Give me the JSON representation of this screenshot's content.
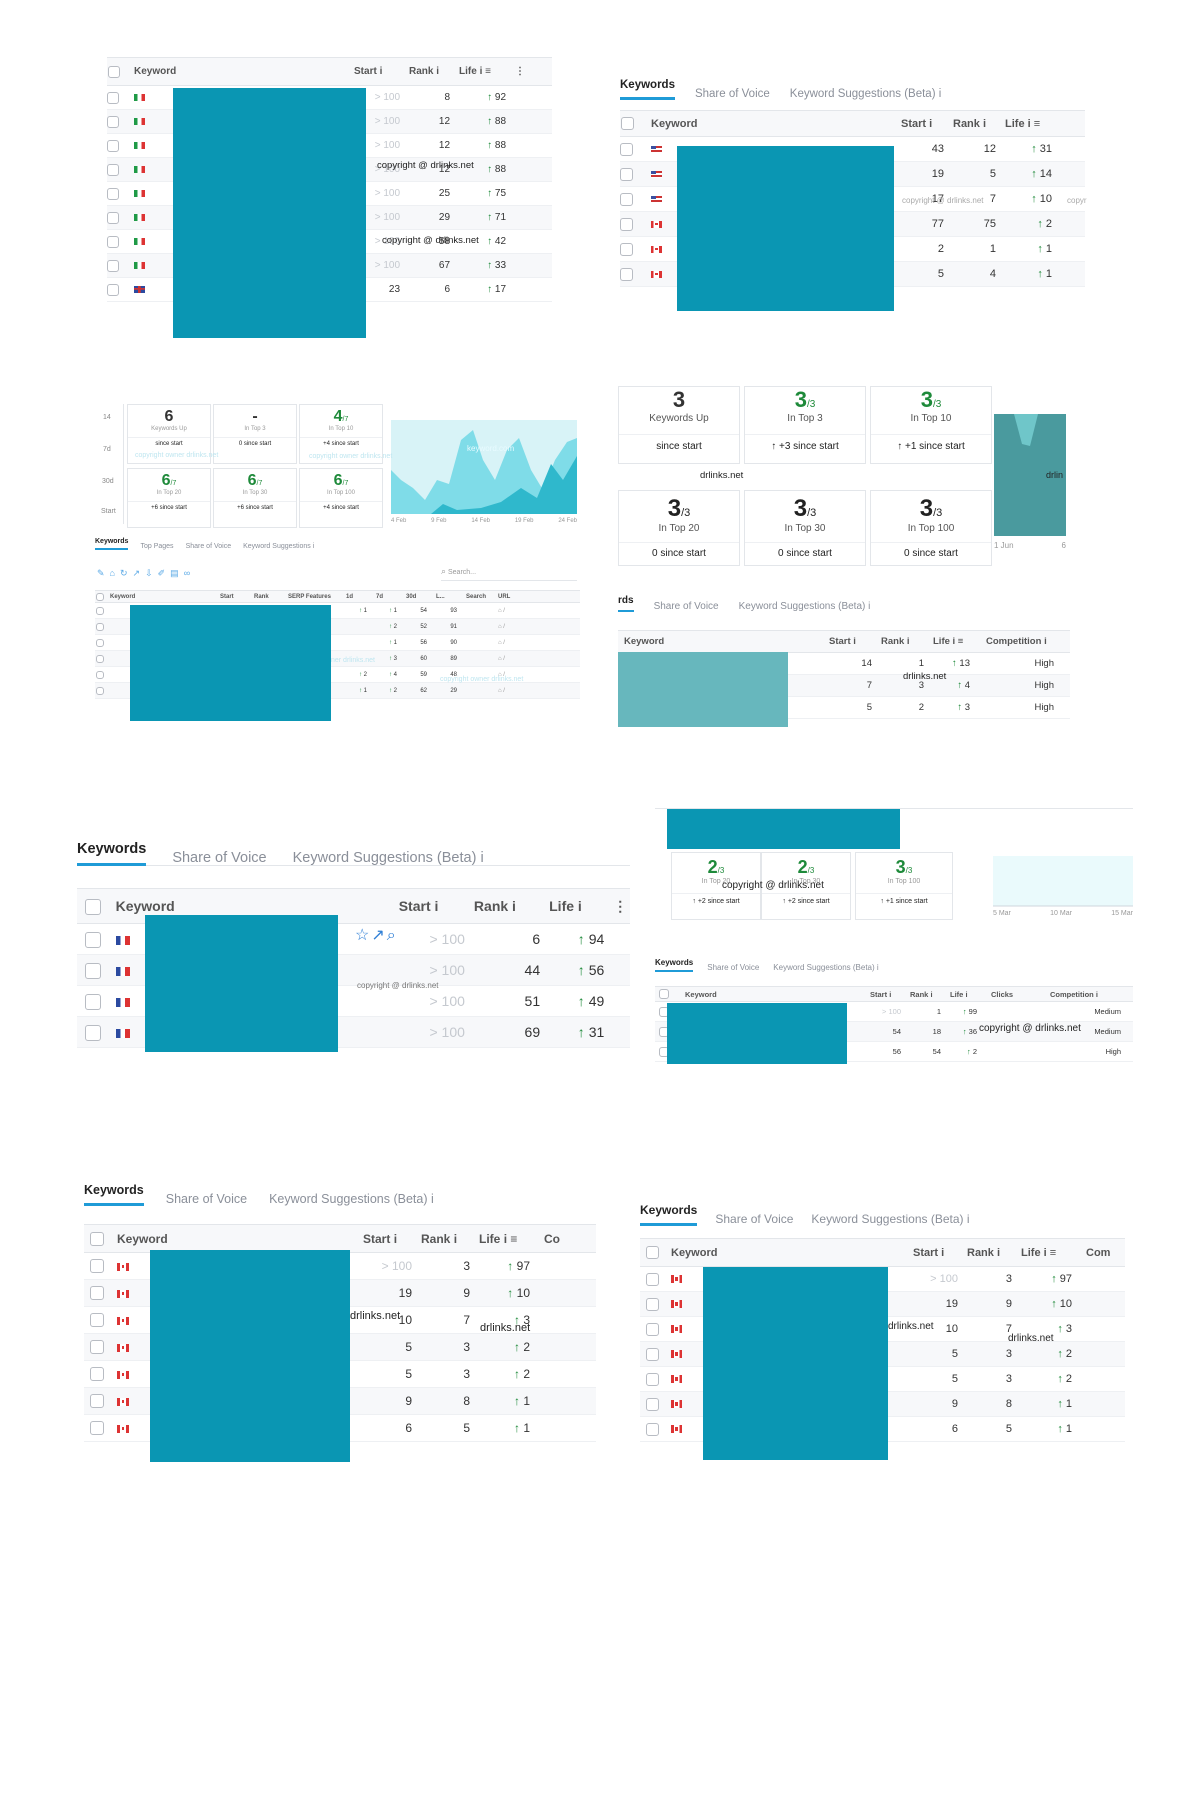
{
  "colors": {
    "mask": "#0a96b3",
    "mask_light": "#67b7bd",
    "accent": "#1f9bd7",
    "up": "#1e8a3a",
    "chart_fill": "#3fc7d9"
  },
  "common": {
    "tab_keywords": "Keywords",
    "tab_share": "Share of Voice",
    "tab_suggest": "Keyword Suggestions (Beta)",
    "info": "i",
    "col_keyword": "Keyword",
    "col_start": "Start",
    "col_rank": "Rank",
    "col_life": "Life",
    "up_arrow": "↑"
  },
  "p1": {
    "watermarks": [
      "copyright @ drlinks.net",
      "copyright @ drlinks.net"
    ],
    "rows": [
      {
        "flag": "it",
        "start": "> 100",
        "rank": "8",
        "life": "92"
      },
      {
        "flag": "it",
        "start": "> 100",
        "rank": "12",
        "life": "88"
      },
      {
        "flag": "it",
        "start": "> 100",
        "rank": "12",
        "life": "88"
      },
      {
        "flag": "it",
        "start": "> 100",
        "rank": "12",
        "life": "88"
      },
      {
        "flag": "it",
        "start": "> 100",
        "rank": "25",
        "life": "75"
      },
      {
        "flag": "it",
        "start": "> 100",
        "rank": "29",
        "life": "71"
      },
      {
        "flag": "it",
        "start": "> 100",
        "rank": "58",
        "life": "42"
      },
      {
        "flag": "it",
        "start": "> 100",
        "rank": "67",
        "life": "33"
      },
      {
        "flag": "gb",
        "start": "23",
        "rank": "6",
        "life": "17"
      }
    ]
  },
  "p2": {
    "watermark": "copyright @ drlinks.net",
    "watermark2": "copyr",
    "rows": [
      {
        "flag": "us",
        "start": "43",
        "rank": "12",
        "life": "31"
      },
      {
        "flag": "us",
        "start": "19",
        "rank": "5",
        "life": "14"
      },
      {
        "flag": "us",
        "start": "17",
        "rank": "7",
        "life": "10"
      },
      {
        "flag": "ca",
        "start": "77",
        "rank": "75",
        "life": "2"
      },
      {
        "flag": "ca",
        "start": "2",
        "rank": "1",
        "life": "1"
      },
      {
        "flag": "ca",
        "start": "5",
        "rank": "4",
        "life": "1"
      }
    ]
  },
  "p3": {
    "periods": [
      "14",
      "7d",
      "30d",
      "Start"
    ],
    "stats": [
      {
        "big": "6",
        "denom": "",
        "sub": "Keywords Up",
        "since": "since start"
      },
      {
        "big": "-",
        "denom": "",
        "sub": "In Top 3",
        "since": "0 since start"
      },
      {
        "big": "4",
        "denom": "/7",
        "sub": "In Top 10",
        "since": "+4 since start"
      },
      {
        "big": "6",
        "denom": "/7",
        "sub": "In Top 20",
        "since": "+6 since start"
      },
      {
        "big": "6",
        "denom": "/7",
        "sub": "In Top 30",
        "since": "+6 since start"
      },
      {
        "big": "6",
        "denom": "/7",
        "sub": "In Top 100",
        "since": "+4 since start"
      }
    ],
    "chart_dates": [
      "4 Feb",
      "9 Feb",
      "14 Feb",
      "19 Feb",
      "24 Feb"
    ],
    "chart_wm": "keyword.com",
    "wm_a": "copyright owner drlinks.net",
    "wm_b": "copyright owner drlinks.net",
    "wm_c": "ner drlinks.net",
    "wm_d": "copyright owner drlinks.net",
    "tabs": [
      "Keywords",
      "Top Pages",
      "Share of Voice",
      "Keyword Suggestions"
    ],
    "search_placeholder": "Search...",
    "cols": [
      "Keyword",
      "Start",
      "Rank",
      "SERP Features",
      "1d",
      "7d",
      "30d",
      "L...",
      "Search",
      "URL"
    ],
    "rows": [
      {
        "d1": "1",
        "d7": "1",
        "d30": "54",
        "l": "93"
      },
      {
        "d1": "",
        "d7": "2",
        "d30": "52",
        "l": "91"
      },
      {
        "d1": "",
        "d7": "1",
        "d30": "56",
        "l": "90"
      },
      {
        "d1": "",
        "d7": "3",
        "d30": "60",
        "l": "89"
      },
      {
        "d1": "2",
        "d7": "4",
        "d30": "59",
        "l": "48"
      },
      {
        "d1": "1",
        "d7": "2",
        "d30": "62",
        "l": "29"
      }
    ]
  },
  "p4": {
    "stats_top": [
      {
        "big": "3",
        "denom": "",
        "sub": "Keywords Up",
        "since": "since start"
      },
      {
        "big": "3",
        "denom": "/3",
        "sub": "In Top 3",
        "since": "+3 since start"
      },
      {
        "big": "3",
        "denom": "/3",
        "sub": "In Top 10",
        "since": "+1 since start"
      }
    ],
    "stats_bottom": [
      {
        "big": "3",
        "denom": "/3",
        "sub": "In Top 20",
        "since": "0 since start"
      },
      {
        "big": "3",
        "denom": "/3",
        "sub": "In Top 30",
        "since": "0 since start"
      },
      {
        "big": "3",
        "denom": "/3",
        "sub": "In Top 100",
        "since": "0 since start"
      }
    ],
    "wm_center": "drlinks.net",
    "wm_chart": "drlin",
    "chart_dates": [
      "1 Jun",
      "6"
    ],
    "tab_partial": "rds",
    "col_competition": "Competition",
    "wm_table": "drlinks.net",
    "rows": [
      {
        "start": "14",
        "rank": "1",
        "life": "13",
        "comp": "High"
      },
      {
        "start": "7",
        "rank": "3",
        "life": "4",
        "comp": "High"
      },
      {
        "start": "5",
        "rank": "2",
        "life": "3",
        "comp": "High"
      }
    ]
  },
  "p5": {
    "wm": "copyright @ drlinks.net",
    "rows": [
      {
        "flag": "fr",
        "start": "> 100",
        "rank": "6",
        "life": "94",
        "wm": ""
      },
      {
        "flag": "fr",
        "start": "> 100",
        "rank": "44",
        "life": "56",
        "wm": "copyright @ drlinks.net"
      },
      {
        "flag": "fr",
        "start": "> 100",
        "rank": "51",
        "life": "49",
        "wm": ""
      },
      {
        "flag": "fr",
        "start": "> 100",
        "rank": "69",
        "life": "31",
        "wm": ""
      }
    ]
  },
  "p6": {
    "stats": [
      {
        "big": "2",
        "denom": "/3",
        "sub": "In Top 20",
        "since": "+2 since start"
      },
      {
        "big": "2",
        "denom": "/3",
        "sub": "In Top 30",
        "since": "+2 since start"
      },
      {
        "big": "3",
        "denom": "/3",
        "sub": "In Top 100",
        "since": "+1 since start"
      }
    ],
    "wm_stats": "copyright @ drlinks.net",
    "chart_dates": [
      "5 Mar",
      "10 Mar",
      "15 Mar"
    ],
    "col_clicks": "Clicks",
    "col_competition": "Competition",
    "wm_table": "copyright @ drlinks.net",
    "rows": [
      {
        "start": "> 100",
        "rank": "1",
        "life": "99",
        "comp": "Medium"
      },
      {
        "start": "54",
        "rank": "18",
        "life": "36",
        "comp": "Medium"
      },
      {
        "start": "56",
        "rank": "54",
        "life": "2",
        "comp": "High"
      }
    ]
  },
  "p7": {
    "col_co": "Co",
    "wm1": "drlinks.net",
    "wm2": "drlinks.net",
    "rows": [
      {
        "flag": "ca",
        "start": "> 100",
        "rank": "3",
        "life": "97"
      },
      {
        "flag": "ca",
        "start": "19",
        "rank": "9",
        "life": "10"
      },
      {
        "flag": "ca",
        "start": "10",
        "rank": "7",
        "life": "3"
      },
      {
        "flag": "ca",
        "start": "5",
        "rank": "3",
        "life": "2"
      },
      {
        "flag": "ca",
        "start": "5",
        "rank": "3",
        "life": "2"
      },
      {
        "flag": "ca",
        "start": "9",
        "rank": "8",
        "life": "1"
      },
      {
        "flag": "ca",
        "start": "6",
        "rank": "5",
        "life": "1"
      }
    ]
  },
  "p8": {
    "col_com": "Com",
    "wm1": "drlinks.net",
    "wm2": "drlinks.net",
    "rows": [
      {
        "flag": "ca",
        "start": "> 100",
        "rank": "3",
        "life": "97"
      },
      {
        "flag": "ca",
        "start": "19",
        "rank": "9",
        "life": "10"
      },
      {
        "flag": "ca",
        "start": "10",
        "rank": "7",
        "life": "3"
      },
      {
        "flag": "ca",
        "start": "5",
        "rank": "3",
        "life": "2"
      },
      {
        "flag": "ca",
        "start": "5",
        "rank": "3",
        "life": "2"
      },
      {
        "flag": "ca",
        "start": "9",
        "rank": "8",
        "life": "1"
      },
      {
        "flag": "ca",
        "start": "6",
        "rank": "5",
        "life": "1"
      }
    ]
  }
}
